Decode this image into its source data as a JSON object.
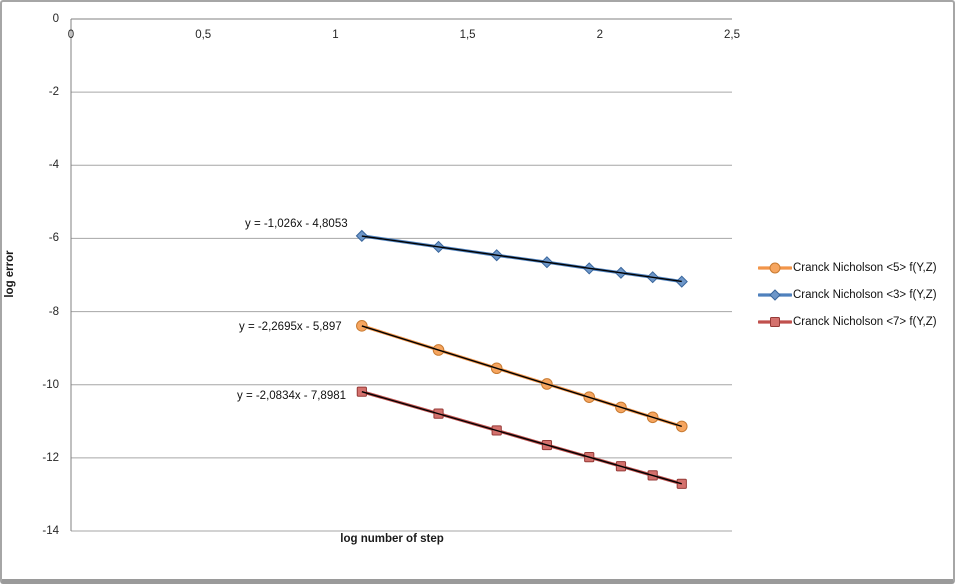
{
  "frame": {
    "background": "#ffffff",
    "border_color": "#a6a6a6"
  },
  "chart_data": {
    "type": "scatter",
    "title": "",
    "xlabel": "log number of step",
    "ylabel": "log error",
    "xlim": [
      0,
      2.5
    ],
    "ylim": [
      -14,
      0
    ],
    "x_tick_labels": [
      "0",
      "0,5",
      "1",
      "1,5",
      "2",
      "2,5"
    ],
    "x_tick_values": [
      0,
      0.5,
      1,
      1.5,
      2,
      2.5
    ],
    "y_tick_labels": [
      "0",
      "-2",
      "-4",
      "-6",
      "-8",
      "-10",
      "-12",
      "-14"
    ],
    "y_tick_values": [
      0,
      -2,
      -4,
      -6,
      -8,
      -10,
      -12,
      -14
    ],
    "grid": "horizontal",
    "gridline_color": "#a6a6a6",
    "axis_line_color": "#808080",
    "legend_position": "right",
    "trendline_color": "#000000",
    "x": [
      1.1,
      1.39,
      1.61,
      1.8,
      1.96,
      2.08,
      2.2,
      2.31
    ],
    "series": [
      {
        "name": "Cranck Nicholson <5> f(Y,Z)",
        "marker": "circle",
        "color": "#F29549",
        "marker_fill": "#F6A55F",
        "marker_stroke": "#C87B32",
        "values": [
          -8.39,
          -9.05,
          -9.55,
          -9.98,
          -10.34,
          -10.62,
          -10.89,
          -11.14
        ],
        "trendline": {
          "equation_label": "y = -2,2695x - 5,897",
          "slope": -2.2695,
          "intercept": -5.897
        }
      },
      {
        "name": "Cranck Nicholson <3> f(Y,Z)",
        "marker": "diamond",
        "color": "#4F81BD",
        "marker_fill": "#6D96C8",
        "marker_stroke": "#38659B",
        "values": [
          -5.93,
          -6.23,
          -6.46,
          -6.65,
          -6.82,
          -6.94,
          -7.06,
          -7.18
        ],
        "trendline": {
          "equation_label": "y = -1,026x - 4,8053",
          "slope": -1.026,
          "intercept": -4.8053
        }
      },
      {
        "name": "Cranck Nicholson <7> f(Y,Z)",
        "marker": "square",
        "color": "#C0504D",
        "marker_fill": "#D4716D",
        "marker_stroke": "#953A37",
        "values": [
          -10.19,
          -10.79,
          -11.25,
          -11.65,
          -11.98,
          -12.23,
          -12.48,
          -12.71
        ],
        "trendline": {
          "equation_label": "y = -2,0834x - 7,8981",
          "slope": -2.0834,
          "intercept": -7.8981
        }
      }
    ]
  }
}
